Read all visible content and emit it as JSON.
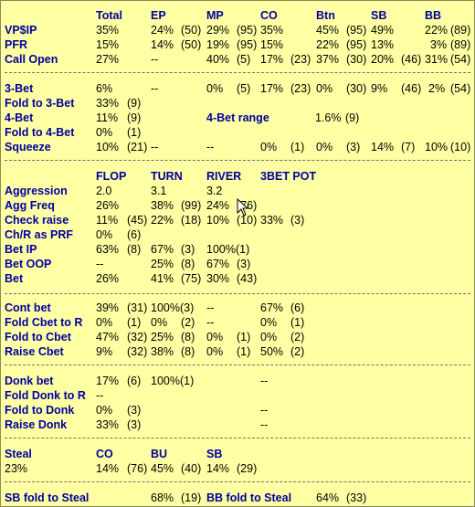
{
  "sec1": {
    "headers": [
      "Total",
      "EP",
      "MP",
      "CO",
      "Btn",
      "SB",
      "BB"
    ],
    "rows": [
      {
        "label": "VP$IP",
        "cells": [
          "35%",
          "24%",
          "(50)",
          "29%",
          "(95)",
          "35%",
          "45%",
          "(95)",
          "49%",
          "22%",
          "(89)"
        ]
      },
      {
        "label": "PFR",
        "cells": [
          "15%",
          "14%",
          "(50)",
          "19%",
          "(95)",
          "15%",
          "22%",
          "(95)",
          "13%",
          "3%",
          "(89)"
        ]
      },
      {
        "label": "Call Open",
        "cells": [
          "27%",
          "--",
          "40%",
          "(5)",
          "17%",
          "(23)",
          "37%",
          "(30)",
          "20%",
          "(46)",
          "31%",
          "(54)"
        ]
      }
    ]
  },
  "sec2": {
    "rows": [
      {
        "label": "3-Bet",
        "cells": [
          "6%",
          "--",
          "0%",
          "(5)",
          "17%",
          "(23)",
          "0%",
          "(30)",
          "9%",
          "(46)",
          "2%",
          "(54)"
        ]
      },
      {
        "label": "Fold to 3-Bet",
        "cells": [
          "33%",
          "(9)"
        ]
      },
      {
        "label": "4-Bet",
        "cells": [
          "11%",
          "(9)",
          "4-Bet range",
          "1.6%",
          "(9)"
        ]
      },
      {
        "label": "Fold to 4-Bet",
        "cells": [
          "0%",
          "(1)"
        ]
      },
      {
        "label": "Squeeze",
        "cells": [
          "10%",
          "(21)",
          "--",
          "--",
          "0%",
          "(1)",
          "0%",
          "(3)",
          "14%",
          "(7)",
          "10%",
          "(10)"
        ]
      }
    ]
  },
  "sec3": {
    "headers": [
      "FLOP",
      "TURN",
      "RIVER",
      "3BET POT"
    ],
    "rows": [
      {
        "label": "Aggression",
        "cells": [
          "2.0",
          "3.1",
          "3.2"
        ]
      },
      {
        "label": "Agg Freq",
        "cells": [
          "26%",
          "38%",
          "(99)",
          "24%",
          "(76)"
        ]
      },
      {
        "label": "Check raise",
        "cells": [
          "11%",
          "(45)",
          "22%",
          "(18)",
          "10%",
          "(10)",
          "33%",
          "(3)"
        ]
      },
      {
        "label": "Ch/R as PRF",
        "cells": [
          "0%",
          "(6)"
        ]
      },
      {
        "label": "Bet IP",
        "cells": [
          "63%",
          "(8)",
          "67%",
          "(3)",
          "100%(1)"
        ]
      },
      {
        "label": "Bet OOP",
        "cells": [
          "--",
          "25%",
          "(8)",
          "67%",
          "(3)"
        ]
      },
      {
        "label": "Bet",
        "cells": [
          "26%",
          "41%",
          "(75)",
          "30%",
          "(43)"
        ]
      }
    ]
  },
  "sec4": {
    "rows": [
      {
        "label": "Cont bet",
        "cells": [
          "39%",
          "(31)",
          "100%(3)",
          "--",
          "67%",
          "(6)"
        ]
      },
      {
        "label": "Fold Cbet to R",
        "cells": [
          "0%",
          "(1)",
          "0%",
          "(2)",
          "--",
          "0%",
          "(1)"
        ]
      },
      {
        "label": "Fold to Cbet",
        "cells": [
          "47%",
          "(32)",
          "25%",
          "(8)",
          "0%",
          "(1)",
          "0%",
          "(2)"
        ]
      },
      {
        "label": "Raise Cbet",
        "cells": [
          "9%",
          "(32)",
          "38%",
          "(8)",
          "0%",
          "(1)",
          "50%",
          "(2)"
        ]
      }
    ]
  },
  "sec5": {
    "rows": [
      {
        "label": "Donk bet",
        "cells": [
          "17%",
          "(6)",
          "100%(1)",
          "--"
        ]
      },
      {
        "label": "Fold Donk to R",
        "cells": [
          "--"
        ]
      },
      {
        "label": "Fold to Donk",
        "cells": [
          "0%",
          "(3)",
          "--"
        ]
      },
      {
        "label": "Raise Donk",
        "cells": [
          "33%",
          "(3)",
          "--"
        ]
      }
    ]
  },
  "sec6": {
    "headers": [
      "Steal",
      "CO",
      "BU",
      "SB"
    ],
    "values": [
      "23%",
      "14%",
      "(76)",
      "45%",
      "(40)",
      "14%",
      "(29)"
    ]
  },
  "sec7": {
    "label": "SB fold to Steal",
    "value": "68%",
    "count": "(19)",
    "label2": "BB fold to Steal",
    "value2": "64%",
    "count2": "(33)"
  }
}
